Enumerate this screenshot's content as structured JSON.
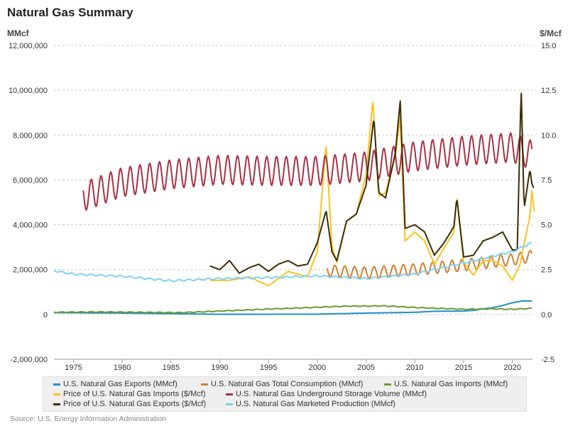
{
  "title": "Natural Gas Summary",
  "source": "Source: U.S. Energy Information Administration",
  "left_unit": "MMcf",
  "right_unit": "$/Mcf",
  "chart_data": {
    "type": "line",
    "title": "Natural Gas Summary",
    "x_ticks": [
      1975,
      1980,
      1985,
      1990,
      1995,
      2000,
      2005,
      2010,
      2015,
      2020
    ],
    "x_range": [
      1973,
      2022.5
    ],
    "y_left": {
      "label": "MMcf",
      "ticks": [
        "-2,000,000",
        "0",
        "2,000,000",
        "4,000,000",
        "6,000,000",
        "8,000,000",
        "10,000,000",
        "12,000,000"
      ],
      "range": [
        -2000000,
        12000000
      ]
    },
    "y_right": {
      "label": "$/Mcf",
      "ticks": [
        "-2.5",
        "0.0",
        "2.5",
        "5.0",
        "7.5",
        "10.0",
        "12.5",
        "15.0"
      ],
      "range": [
        -2.5,
        15
      ]
    },
    "grid": "horizontal dashed",
    "legend_position": "bottom",
    "series": [
      {
        "name": "U.S. Natural Gas Exports (MMcf)",
        "axis": "left",
        "color": "#1f8dc8",
        "seasonal": 0,
        "points": [
          [
            1973,
            80000
          ],
          [
            1980,
            60000
          ],
          [
            1990,
            7000
          ],
          [
            2000,
            12000
          ],
          [
            2005,
            60000
          ],
          [
            2010,
            95000
          ],
          [
            2012,
            140000
          ],
          [
            2015,
            150000
          ],
          [
            2016,
            180000
          ],
          [
            2017,
            250000
          ],
          [
            2018,
            300000
          ],
          [
            2019,
            400000
          ],
          [
            2020,
            520000
          ],
          [
            2021,
            600000
          ],
          [
            2022,
            600000
          ]
        ]
      },
      {
        "name": "U.S. Natural Gas Total Consumption (MMcf)",
        "axis": "left",
        "color": "#d07f30",
        "seasonal": 520000,
        "points": [
          [
            2001,
            1950000
          ],
          [
            2005,
            1850000
          ],
          [
            2010,
            2000000
          ],
          [
            2015,
            2200000
          ],
          [
            2020,
            2450000
          ],
          [
            2022,
            2600000
          ]
        ]
      },
      {
        "name": "U.S. Natural Gas Imports (MMcf)",
        "axis": "left",
        "color": "#6a9b2e",
        "seasonal": 30000,
        "points": [
          [
            1973,
            100000
          ],
          [
            1978,
            110000
          ],
          [
            1986,
            80000
          ],
          [
            1990,
            150000
          ],
          [
            1995,
            240000
          ],
          [
            2000,
            320000
          ],
          [
            2003,
            370000
          ],
          [
            2007,
            380000
          ],
          [
            2010,
            310000
          ],
          [
            2015,
            230000
          ],
          [
            2018,
            250000
          ],
          [
            2020,
            230000
          ],
          [
            2022,
            270000
          ]
        ]
      },
      {
        "name": "Price of U.S. Natural Gas Imports ($/Mcf)",
        "axis": "right",
        "color": "#f7c322",
        "seasonal": 0,
        "points": [
          [
            1989,
            1.9
          ],
          [
            1991,
            1.9
          ],
          [
            1993,
            2.1
          ],
          [
            1995,
            1.6
          ],
          [
            1997,
            2.4
          ],
          [
            1999,
            2.1
          ],
          [
            2000,
            3.5
          ],
          [
            2000.9,
            9.5
          ],
          [
            2001.5,
            3.8
          ],
          [
            2002,
            2.9
          ],
          [
            2003,
            5.2
          ],
          [
            2004,
            5.6
          ],
          [
            2005,
            7.8
          ],
          [
            2005.7,
            12.0
          ],
          [
            2006.3,
            6.6
          ],
          [
            2007,
            6.8
          ],
          [
            2008,
            8.8
          ],
          [
            2008.5,
            11.0
          ],
          [
            2009,
            4.1
          ],
          [
            2010,
            4.6
          ],
          [
            2011,
            4.1
          ],
          [
            2012,
            2.8
          ],
          [
            2013,
            3.7
          ],
          [
            2014,
            4.6
          ],
          [
            2014.3,
            6.6
          ],
          [
            2015,
            2.9
          ],
          [
            2016,
            2.2
          ],
          [
            2017,
            3.0
          ],
          [
            2018,
            3.0
          ],
          [
            2019,
            2.7
          ],
          [
            2020,
            1.9
          ],
          [
            2020.8,
            2.8
          ],
          [
            2021,
            3.4
          ],
          [
            2021.8,
            5.5
          ],
          [
            2022,
            6.9
          ],
          [
            2022.3,
            5.5
          ]
        ]
      },
      {
        "name": "U.S. Natural Gas Underground Storage Volume (MMcf)",
        "axis": "left",
        "color": "#a63244",
        "seasonal": 1300000,
        "points": [
          [
            1976,
            5250000
          ],
          [
            1980,
            5900000
          ],
          [
            1985,
            6250000
          ],
          [
            1990,
            6450000
          ],
          [
            1995,
            6400000
          ],
          [
            2000,
            6400000
          ],
          [
            2005,
            6600000
          ],
          [
            2010,
            7050000
          ],
          [
            2015,
            7300000
          ],
          [
            2020,
            7450000
          ],
          [
            2022,
            7100000
          ]
        ]
      },
      {
        "name": "Price of U.S. Natural Gas Exports ($/Mcf)",
        "axis": "right",
        "color": "#3b2d06",
        "seasonal": 0,
        "points": [
          [
            1989,
            2.7
          ],
          [
            1990,
            2.5
          ],
          [
            1991,
            3.0
          ],
          [
            1992,
            2.3
          ],
          [
            1993,
            2.6
          ],
          [
            1994,
            2.8
          ],
          [
            1995,
            2.4
          ],
          [
            1996,
            2.8
          ],
          [
            1997,
            3.0
          ],
          [
            1998,
            2.7
          ],
          [
            1999,
            2.8
          ],
          [
            2000,
            4.0
          ],
          [
            2000.9,
            5.8
          ],
          [
            2001.5,
            3.5
          ],
          [
            2002,
            3.0
          ],
          [
            2003,
            5.2
          ],
          [
            2004,
            5.6
          ],
          [
            2005,
            7.2
          ],
          [
            2005.8,
            11.0
          ],
          [
            2006.3,
            6.8
          ],
          [
            2007,
            6.5
          ],
          [
            2008,
            9.0
          ],
          [
            2008.5,
            11.9
          ],
          [
            2009,
            4.8
          ],
          [
            2010,
            5.0
          ],
          [
            2011,
            4.6
          ],
          [
            2012,
            3.3
          ],
          [
            2013,
            4.0
          ],
          [
            2014,
            4.9
          ],
          [
            2014.3,
            6.5
          ],
          [
            2015,
            3.2
          ],
          [
            2016,
            3.3
          ],
          [
            2017,
            4.1
          ],
          [
            2018,
            4.3
          ],
          [
            2019,
            4.6
          ],
          [
            2020,
            3.6
          ],
          [
            2020.5,
            3.6
          ],
          [
            2020.9,
            12.7
          ],
          [
            2021.2,
            5.9
          ],
          [
            2021.8,
            8.1
          ],
          [
            2022,
            7.3
          ],
          [
            2022.2,
            7.0
          ]
        ]
      },
      {
        "name": "U.S. Natural Gas Marketed Production (MMcf)",
        "axis": "left",
        "color": "#7fd0f3",
        "seasonal": 70000,
        "points": [
          [
            1973,
            1950000
          ],
          [
            1975,
            1800000
          ],
          [
            1980,
            1700000
          ],
          [
            1985,
            1500000
          ],
          [
            1990,
            1600000
          ],
          [
            1995,
            1640000
          ],
          [
            2000,
            1720000
          ],
          [
            2005,
            1600000
          ],
          [
            2010,
            1800000
          ],
          [
            2015,
            2300000
          ],
          [
            2020,
            2800000
          ],
          [
            2022,
            3200000
          ]
        ]
      }
    ]
  },
  "legend": [
    {
      "label": "U.S. Natural Gas Exports (MMcf)",
      "color": "#1f8dc8"
    },
    {
      "label": "U.S. Natural Gas Total Consumption (MMcf)",
      "color": "#d07f30"
    },
    {
      "label": "U.S. Natural Gas Imports (MMcf)",
      "color": "#6a9b2e"
    },
    {
      "label": "Price of U.S. Natural Gas Imports ($/Mcf)",
      "color": "#f7c322"
    },
    {
      "label": "U.S. Natural Gas Underground Storage Volume (MMcf)",
      "color": "#a63244"
    },
    {
      "label": "Price of U.S. Natural Gas Exports ($/Mcf)",
      "color": "#3b2d06"
    },
    {
      "label": "U.S. Natural Gas Marketed Production (MMcf)",
      "color": "#7fd0f3"
    }
  ]
}
